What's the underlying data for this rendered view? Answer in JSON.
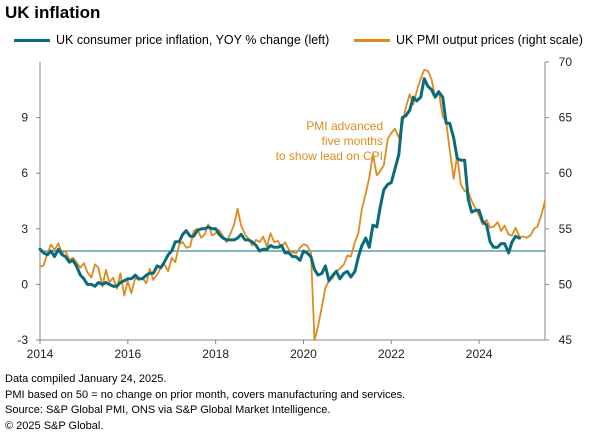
{
  "title": "UK inflation",
  "colors": {
    "cpi": "#0b6b7c",
    "pmi": "#e08a1e",
    "reference": "#0b6b7c",
    "axis": "#888888"
  },
  "chart_data": {
    "type": "line",
    "x_ticks": [
      "2014",
      "2016",
      "2018",
      "2020",
      "2022",
      "2024"
    ],
    "y_left": {
      "ticks": [
        "-3",
        "0",
        "3",
        "6",
        "9"
      ],
      "lim": [
        -3,
        12
      ]
    },
    "y_right": {
      "ticks": [
        "45",
        "50",
        "55",
        "60",
        "65",
        "70"
      ],
      "lim": [
        45,
        70
      ]
    },
    "reference_line": {
      "axis": "right",
      "value": 53
    },
    "grid": false,
    "legend_position": "top",
    "annotation": [
      "PMI advanced",
      "five months",
      "to show lead on CPI"
    ],
    "series": [
      {
        "name": "UK consumer price inflation, YOY % change (left)",
        "axis": "left",
        "color": "#0b6b7c",
        "x": [
          2014.0,
          2014.08,
          2014.17,
          2014.25,
          2014.33,
          2014.42,
          2014.5,
          2014.58,
          2014.67,
          2014.75,
          2014.83,
          2014.92,
          2015.0,
          2015.08,
          2015.17,
          2015.25,
          2015.33,
          2015.42,
          2015.5,
          2015.58,
          2015.67,
          2015.75,
          2015.83,
          2015.92,
          2016.0,
          2016.08,
          2016.17,
          2016.25,
          2016.33,
          2016.42,
          2016.5,
          2016.58,
          2016.67,
          2016.75,
          2016.83,
          2016.92,
          2017.0,
          2017.08,
          2017.17,
          2017.25,
          2017.33,
          2017.42,
          2017.5,
          2017.58,
          2017.67,
          2017.75,
          2017.83,
          2017.92,
          2018.0,
          2018.08,
          2018.17,
          2018.25,
          2018.33,
          2018.42,
          2018.5,
          2018.58,
          2018.67,
          2018.75,
          2018.83,
          2018.92,
          2019.0,
          2019.08,
          2019.17,
          2019.25,
          2019.33,
          2019.42,
          2019.5,
          2019.58,
          2019.67,
          2019.75,
          2019.83,
          2019.92,
          2020.0,
          2020.08,
          2020.17,
          2020.25,
          2020.33,
          2020.42,
          2020.5,
          2020.58,
          2020.67,
          2020.75,
          2020.83,
          2020.92,
          2021.0,
          2021.08,
          2021.17,
          2021.25,
          2021.33,
          2021.42,
          2021.5,
          2021.58,
          2021.67,
          2021.75,
          2021.83,
          2021.92,
          2022.0,
          2022.08,
          2022.17,
          2022.25,
          2022.33,
          2022.42,
          2022.5,
          2022.58,
          2022.67,
          2022.75,
          2022.83,
          2022.92,
          2023.0,
          2023.08,
          2023.17,
          2023.25,
          2023.33,
          2023.42,
          2023.5,
          2023.58,
          2023.67,
          2023.75,
          2023.83,
          2023.92,
          2024.0,
          2024.08,
          2024.17,
          2024.25,
          2024.33,
          2024.42,
          2024.5,
          2024.58,
          2024.67,
          2024.75,
          2024.83,
          2024.92
        ],
        "values": [
          1.9,
          1.7,
          1.6,
          1.8,
          1.5,
          1.9,
          1.6,
          1.5,
          1.2,
          1.3,
          1.0,
          0.5,
          0.3,
          0.0,
          0.0,
          -0.1,
          0.1,
          0.0,
          0.1,
          0.0,
          -0.1,
          -0.1,
          0.1,
          0.2,
          0.3,
          0.3,
          0.5,
          0.3,
          0.3,
          0.5,
          0.6,
          0.6,
          1.0,
          0.9,
          1.2,
          1.6,
          1.8,
          2.3,
          2.3,
          2.7,
          2.9,
          2.6,
          2.6,
          2.9,
          3.0,
          3.0,
          3.1,
          3.0,
          3.0,
          2.7,
          2.5,
          2.4,
          2.4,
          2.4,
          2.5,
          2.7,
          2.4,
          2.4,
          2.3,
          2.1,
          1.8,
          1.9,
          1.9,
          2.1,
          2.0,
          2.0,
          2.1,
          1.7,
          1.7,
          1.5,
          1.5,
          1.3,
          1.8,
          1.7,
          1.5,
          0.8,
          0.5,
          0.6,
          1.0,
          0.2,
          0.5,
          0.7,
          0.3,
          0.6,
          0.7,
          0.4,
          0.7,
          1.5,
          2.1,
          2.5,
          2.0,
          3.2,
          3.1,
          4.2,
          5.1,
          5.4,
          5.5,
          6.2,
          7.0,
          9.0,
          9.1,
          9.4,
          10.1,
          9.9,
          10.1,
          11.1,
          10.7,
          10.5,
          10.1,
          10.4,
          10.1,
          8.7,
          8.7,
          7.9,
          6.8,
          6.7,
          6.7,
          4.6,
          3.9,
          4.0,
          4.0,
          3.4,
          3.2,
          2.3,
          2.0,
          2.0,
          2.2,
          2.2,
          1.7,
          2.3,
          2.6,
          2.5
        ]
      },
      {
        "name": "UK PMI output prices (right scale)",
        "axis": "right",
        "color": "#e08a1e",
        "x": [
          2014.0,
          2014.08,
          2014.17,
          2014.25,
          2014.33,
          2014.42,
          2014.5,
          2014.58,
          2014.67,
          2014.75,
          2014.83,
          2014.92,
          2015.0,
          2015.08,
          2015.17,
          2015.25,
          2015.33,
          2015.42,
          2015.5,
          2015.58,
          2015.67,
          2015.75,
          2015.83,
          2015.92,
          2016.0,
          2016.08,
          2016.17,
          2016.25,
          2016.33,
          2016.42,
          2016.5,
          2016.58,
          2016.67,
          2016.75,
          2016.83,
          2016.92,
          2017.0,
          2017.08,
          2017.17,
          2017.25,
          2017.33,
          2017.42,
          2017.5,
          2017.58,
          2017.67,
          2017.75,
          2017.83,
          2017.92,
          2018.0,
          2018.08,
          2018.17,
          2018.25,
          2018.33,
          2018.42,
          2018.5,
          2018.58,
          2018.67,
          2018.75,
          2018.83,
          2018.92,
          2019.0,
          2019.08,
          2019.17,
          2019.25,
          2019.33,
          2019.42,
          2019.5,
          2019.58,
          2019.67,
          2019.75,
          2019.83,
          2019.92,
          2020.0,
          2020.08,
          2020.17,
          2020.25,
          2020.33,
          2020.42,
          2020.5,
          2020.58,
          2020.67,
          2020.75,
          2020.83,
          2020.92,
          2021.0,
          2021.08,
          2021.17,
          2021.25,
          2021.33,
          2021.42,
          2021.5,
          2021.58,
          2021.67,
          2021.75,
          2021.83,
          2021.92,
          2022.0,
          2022.08,
          2022.17,
          2022.25,
          2022.33,
          2022.42,
          2022.5,
          2022.58,
          2022.67,
          2022.75,
          2022.83,
          2022.92,
          2023.0,
          2023.08,
          2023.17,
          2023.25,
          2023.33,
          2023.42,
          2023.5,
          2023.58,
          2023.67,
          2023.75,
          2023.83,
          2023.92,
          2024.0,
          2024.08,
          2024.17,
          2024.25,
          2024.33,
          2024.42,
          2024.5,
          2024.58,
          2024.67,
          2024.75,
          2024.83,
          2024.92,
          2025.0,
          2025.08,
          2025.17,
          2025.25,
          2025.33,
          2025.42,
          2025.5
        ],
        "values": [
          51.6,
          51.7,
          52.8,
          53.6,
          53.1,
          53.7,
          52.8,
          53.0,
          52.2,
          52.4,
          52.0,
          51.5,
          51.9,
          51.1,
          50.6,
          51.8,
          51.5,
          49.8,
          51.3,
          50.2,
          50.6,
          49.6,
          51.0,
          49.0,
          50.3,
          49.2,
          50.6,
          50.4,
          50.6,
          50.1,
          51.4,
          50.4,
          50.9,
          51.5,
          51.8,
          51.2,
          52.4,
          52.0,
          53.6,
          53.8,
          53.3,
          53.4,
          54.8,
          55.0,
          54.2,
          54.5,
          55.4,
          54.4,
          54.6,
          54.9,
          54.3,
          53.8,
          54.5,
          55.4,
          56.8,
          55.3,
          54.5,
          54.1,
          53.5,
          54.0,
          53.8,
          54.3,
          53.4,
          54.6,
          53.8,
          53.9,
          53.3,
          53.8,
          53.1,
          52.9,
          52.8,
          53.3,
          53.6,
          53.5,
          52.9,
          45.0,
          46.2,
          48.0,
          49.7,
          50.3,
          50.6,
          51.2,
          51.4,
          51.8,
          52.6,
          52.5,
          53.8,
          54.6,
          56.8,
          58.2,
          59.6,
          61.7,
          59.8,
          60.2,
          60.7,
          63.1,
          63.6,
          64.0,
          63.2,
          64.4,
          65.9,
          67.1,
          66.2,
          67.4,
          68.5,
          69.3,
          69.2,
          68.4,
          66.8,
          67.4,
          65.1,
          64.6,
          62.1,
          59.5,
          61.6,
          59.0,
          58.4,
          58.3,
          57.5,
          56.8,
          56.2,
          55.4,
          55.8,
          55.1,
          55.2,
          55.6,
          54.8,
          55.3,
          54.5,
          54.4,
          55.1,
          54.3,
          54.3,
          54.2,
          54.4,
          55.0,
          55.2,
          56.3,
          57.5
        ]
      }
    ]
  },
  "legend": [
    {
      "label": "UK consumer price inflation, YOY % change (left)",
      "color": "#0b6b7c"
    },
    {
      "label": "UK PMI output prices (right scale)",
      "color": "#e08a1e"
    }
  ],
  "footnotes": [
    "Data compiled January 24, 2025.",
    "PMI based on 50 = no change on prior month, covers manufacturing and services.",
    "Source: S&P Global PMI, ONS via S&P Global Market Intelligence.",
    "© 2025 S&P Global."
  ]
}
